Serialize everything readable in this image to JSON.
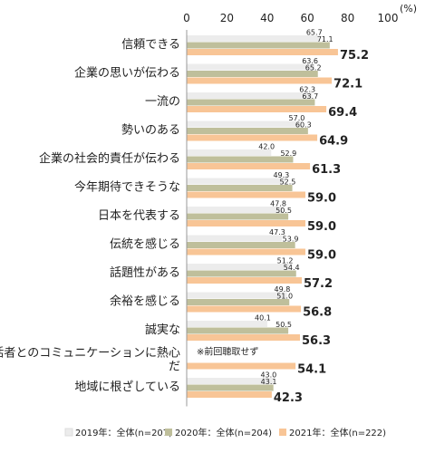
{
  "chart_data": {
    "type": "bar",
    "orientation": "horizontal",
    "unit": "(%)",
    "xlim": [
      0,
      100
    ],
    "ticks": [
      "0",
      "20",
      "40",
      "60",
      "80",
      "100"
    ],
    "categories": [
      "信頼できる",
      "企業の思いが伝わる",
      "一流の",
      "勢いのある",
      "企業の社会的責任が伝わる",
      "今年期待できそうな",
      "日本を代表する",
      "伝統を感じる",
      "話題性がある",
      "余裕を感じる",
      "誠実な",
      "生活者とのコミュニケーションに熱心だ",
      "地域に根ざしている"
    ],
    "series": [
      {
        "name": "2019年：全体(n=207)",
        "color": "#ececec",
        "values": [
          65.7,
          63.6,
          62.3,
          57.0,
          42.0,
          49.3,
          47.8,
          47.3,
          51.2,
          49.8,
          40.1,
          null,
          43.0
        ]
      },
      {
        "name": "2020年：全体(n=204)",
        "color": "#bfbf9b",
        "values": [
          71.1,
          65.2,
          63.7,
          60.3,
          52.9,
          52.5,
          50.5,
          53.9,
          54.4,
          51.0,
          50.5,
          null,
          43.1
        ]
      },
      {
        "name": "2021年：全体(n=222)",
        "color": "#f8c596",
        "values": [
          75.2,
          72.1,
          69.4,
          64.9,
          61.3,
          59.0,
          59.0,
          59.0,
          57.2,
          56.8,
          56.3,
          54.1,
          42.3
        ]
      }
    ],
    "annotation": "※前回聴取せず",
    "grid": false,
    "legend_position": "bottom"
  }
}
